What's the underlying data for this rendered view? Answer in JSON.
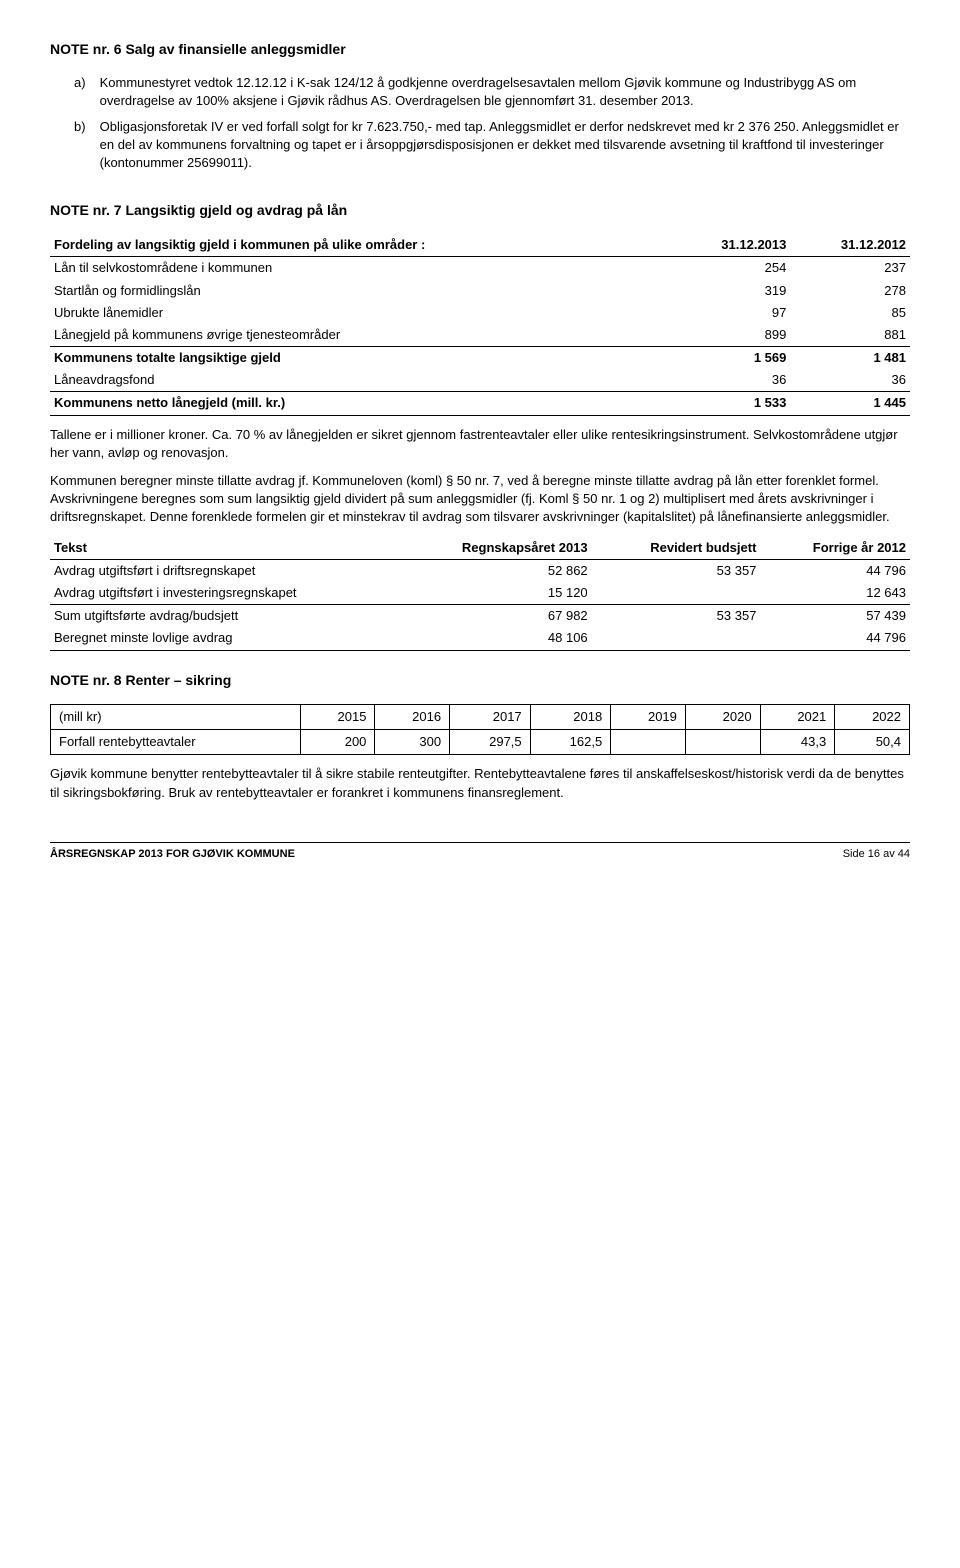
{
  "note6": {
    "title": "NOTE nr. 6 Salg av finansielle anleggsmidler",
    "a_label": "a)",
    "a_text": "Kommunestyret vedtok 12.12.12 i K-sak 124/12 å godkjenne overdragelsesavtalen mellom Gjøvik kommune og Industribygg AS om overdragelse av 100% aksjene i Gjøvik rådhus AS. Overdragelsen ble gjennomført 31. desember 2013.",
    "b_label": "b)",
    "b_text": "Obligasjonsforetak IV er ved forfall solgt for kr 7.623.750,- med tap. Anleggsmidlet er derfor nedskrevet med kr 2 376 250. Anleggsmidlet er en del av kommunens forvaltning og tapet er i årsoppgjørsdisposisjonen er dekket med tilsvarende avsetning til kraftfond til investeringer (kontonummer 25699011)."
  },
  "note7": {
    "title": "NOTE nr. 7 Langsiktig gjeld og avdrag på lån",
    "header": [
      "Fordeling av langsiktig gjeld i kommunen på ulike områder :",
      "31.12.2013",
      "31.12.2012"
    ],
    "rows": [
      {
        "label": "Lån til selvkostområdene i kommunen",
        "v1": "254",
        "v2": "237",
        "bold": false,
        "border": false
      },
      {
        "label": "Startlån og formidlingslån",
        "v1": "319",
        "v2": "278",
        "bold": false,
        "border": false
      },
      {
        "label": "Ubrukte lånemidler",
        "v1": "97",
        "v2": "85",
        "bold": false,
        "border": false
      },
      {
        "label": "Lånegjeld på kommunens øvrige tjenesteområder",
        "v1": "899",
        "v2": "881",
        "bold": false,
        "border": true
      },
      {
        "label": "Kommunens totalte langsiktige gjeld",
        "v1": "1 569",
        "v2": "1 481",
        "bold": true,
        "border": false
      },
      {
        "label": "Låneavdragsfond",
        "v1": "36",
        "v2": "36",
        "bold": false,
        "border": true
      },
      {
        "label": "Kommunens netto lånegjeld (mill. kr.)",
        "v1": "1 533",
        "v2": "1 445",
        "bold": true,
        "border": true
      }
    ],
    "para1": "Tallene er i millioner kroner. Ca. 70 % av lånegjelden er sikret gjennom fastrenteavtaler eller ulike rentesikringsinstrument. Selvkostområdene utgjør her vann, avløp og renovasjon.",
    "para2": "Kommunen beregner minste tillatte avdrag jf. Kommuneloven (koml) § 50 nr. 7, ved å beregne minste tillatte avdrag på lån etter forenklet formel. Avskrivningene beregnes som sum langsiktig gjeld dividert på sum anleggsmidler (fj. Koml § 50 nr. 1 og 2) multiplisert med årets avskrivninger i driftsregnskapet. Denne forenklede formelen gir et minstekrav til avdrag som tilsvarer avskrivninger (kapitalslitet) på lånefinansierte anleggsmidler.",
    "tbl2_header": [
      "Tekst",
      "Regnskapsåret 2013",
      "Revidert budsjett",
      "Forrige år 2012"
    ],
    "tbl2_rows": [
      {
        "c1": "Avdrag utgiftsført i driftsregnskapet",
        "c2": "52 862",
        "c3": "53 357",
        "c4": "44 796",
        "border": false
      },
      {
        "c1": "Avdrag utgiftsført i investeringsregnskapet",
        "c2": "15 120",
        "c3": "",
        "c4": "12 643",
        "border": true
      },
      {
        "c1": "Sum utgiftsførte avdrag/budsjett",
        "c2": "67 982",
        "c3": "53 357",
        "c4": "57 439",
        "border": false
      },
      {
        "c1": "Beregnet minste lovlige avdrag",
        "c2": "48 106",
        "c3": "",
        "c4": "44 796",
        "border": true
      }
    ]
  },
  "note8": {
    "title": "NOTE nr. 8 Renter – sikring",
    "header": [
      "(mill kr)",
      "2015",
      "2016",
      "2017",
      "2018",
      "2019",
      "2020",
      "2021",
      "2022"
    ],
    "row": [
      "Forfall rentebytteavtaler",
      "200",
      "300",
      "297,5",
      "162,5",
      "",
      "",
      "43,3",
      "50,4"
    ],
    "para": "Gjøvik kommune benytter rentebytteavtaler til å sikre stabile renteutgifter. Rentebytteavtalene føres til anskaffelseskost/historisk verdi da de benyttes til sikringsbokføring. Bruk av rentebytteavtaler er forankret i kommunens finansreglement."
  },
  "footer": {
    "left": "ÅRSREGNSKAP 2013 FOR GJØVIK KOMMUNE",
    "right": "Side 16 av 44"
  }
}
